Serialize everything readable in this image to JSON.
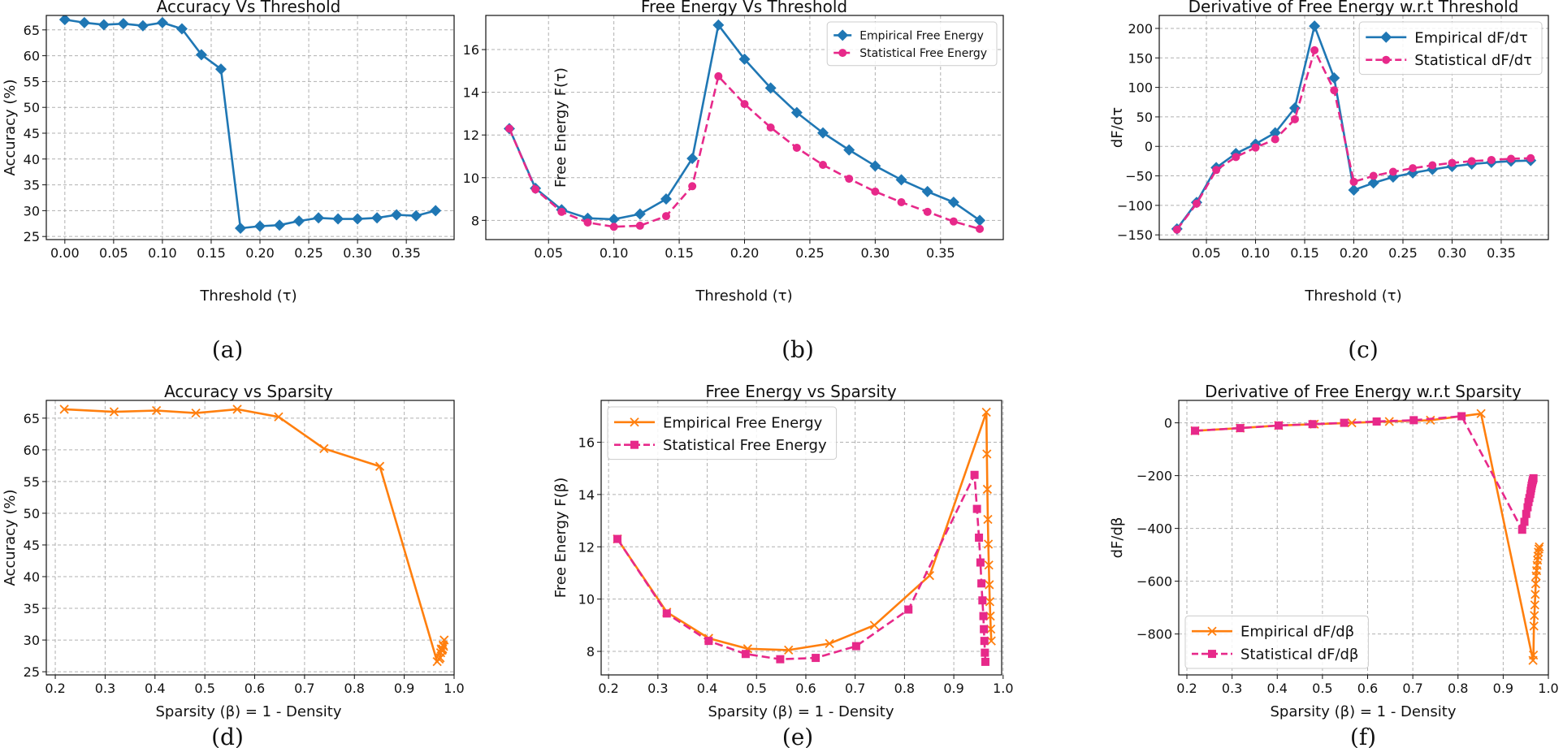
{
  "figure": {
    "captions": [
      "(a)",
      "(b)",
      "(c)",
      "(d)",
      "(e)",
      "(f)"
    ]
  },
  "colors": {
    "blue": "#1f77b4",
    "magenta": "#e7298a",
    "orange": "#ff7f0e"
  },
  "chart_data": [
    {
      "type": "line",
      "title": "Accuracy Vs Threshold",
      "xlabel": "Threshold (τ)",
      "ylabel": "Accuracy (%)",
      "xlim": [
        -0.019,
        0.399
      ],
      "ylim": [
        24.4,
        67.8
      ],
      "xticks": [
        0.0,
        0.05,
        0.1,
        0.15,
        0.2,
        0.25,
        0.3,
        0.35
      ],
      "xtick_labels": [
        "0.00",
        "0.05",
        "0.10",
        "0.15",
        "0.20",
        "0.25",
        "0.30",
        "0.35"
      ],
      "yticks": [
        25,
        30,
        35,
        40,
        45,
        50,
        55,
        60,
        65
      ],
      "ytick_labels": [
        "25",
        "30",
        "35",
        "40",
        "45",
        "50",
        "55",
        "60",
        "65"
      ],
      "grid": true,
      "legend": null,
      "series": [
        {
          "name": "Accuracy",
          "color": "#1f77b4",
          "marker": "diamond",
          "dash": "solid",
          "x": [
            0.0,
            0.02,
            0.04,
            0.06,
            0.08,
            0.1,
            0.12,
            0.14,
            0.16,
            0.18,
            0.2,
            0.22,
            0.24,
            0.26,
            0.28,
            0.3,
            0.32,
            0.34,
            0.36,
            0.38
          ],
          "y": [
            67.0,
            66.4,
            66.0,
            66.2,
            65.8,
            66.4,
            65.2,
            60.2,
            57.4,
            26.6,
            27.0,
            27.2,
            28.0,
            28.6,
            28.4,
            28.4,
            28.6,
            29.2,
            29.0,
            30.0
          ]
        }
      ]
    },
    {
      "type": "line",
      "title": "Free Energy Vs Threshold",
      "xlabel": "Threshold (τ)",
      "ylabel": "Free Energy F(τ)",
      "xlim": [
        0.002,
        0.398
      ],
      "ylim": [
        7.1,
        17.6
      ],
      "xticks": [
        0.05,
        0.1,
        0.15,
        0.2,
        0.25,
        0.3,
        0.35
      ],
      "xtick_labels": [
        "0.05",
        "0.10",
        "0.15",
        "0.20",
        "0.25",
        "0.30",
        "0.35"
      ],
      "yticks": [
        8,
        10,
        12,
        14,
        16
      ],
      "ytick_labels": [
        "8",
        "10",
        "12",
        "14",
        "16"
      ],
      "grid": true,
      "legend": "top-right",
      "legend_font": 14,
      "series": [
        {
          "name": "Empirical Free Energy",
          "color": "#1f77b4",
          "marker": "diamond",
          "dash": "solid",
          "x": [
            0.02,
            0.04,
            0.06,
            0.08,
            0.1,
            0.12,
            0.14,
            0.16,
            0.18,
            0.2,
            0.22,
            0.24,
            0.26,
            0.28,
            0.3,
            0.32,
            0.34,
            0.36,
            0.38
          ],
          "y": [
            12.3,
            9.5,
            8.5,
            8.1,
            8.05,
            8.3,
            9.0,
            10.9,
            17.15,
            15.55,
            14.2,
            13.05,
            12.1,
            11.3,
            10.55,
            9.9,
            9.35,
            8.85,
            8.0
          ]
        },
        {
          "name": "Statistical Free Energy",
          "color": "#e7298a",
          "marker": "circle",
          "dash": "dashed",
          "x": [
            0.02,
            0.04,
            0.06,
            0.08,
            0.1,
            0.12,
            0.14,
            0.16,
            0.18,
            0.2,
            0.22,
            0.24,
            0.26,
            0.28,
            0.3,
            0.32,
            0.34,
            0.36,
            0.38
          ],
          "y": [
            12.3,
            9.45,
            8.4,
            7.9,
            7.7,
            7.75,
            8.2,
            9.6,
            14.75,
            13.45,
            12.35,
            11.4,
            10.6,
            9.95,
            9.35,
            8.85,
            8.4,
            7.95,
            7.6
          ]
        }
      ]
    },
    {
      "type": "line",
      "title": "Derivative of Free Energy w.r.t Threshold",
      "xlabel": "Threshold (τ)",
      "ylabel": "dF/dτ",
      "xlim": [
        0.002,
        0.398
      ],
      "ylim": [
        -158,
        222
      ],
      "xticks": [
        0.05,
        0.1,
        0.15,
        0.2,
        0.25,
        0.3,
        0.35
      ],
      "xtick_labels": [
        "0.05",
        "0.10",
        "0.15",
        "0.20",
        "0.25",
        "0.30",
        "0.35"
      ],
      "yticks": [
        -150,
        -100,
        -50,
        0,
        50,
        100,
        150,
        200
      ],
      "ytick_labels": [
        "−150",
        "−100",
        "−50",
        "0",
        "50",
        "100",
        "150",
        "200"
      ],
      "grid": true,
      "legend": "top-right",
      "legend_font": 18,
      "series": [
        {
          "name": "Empirical dF/dτ",
          "color": "#1f77b4",
          "marker": "diamond",
          "dash": "solid",
          "x": [
            0.02,
            0.04,
            0.06,
            0.08,
            0.1,
            0.12,
            0.14,
            0.16,
            0.18,
            0.2,
            0.22,
            0.24,
            0.26,
            0.28,
            0.3,
            0.32,
            0.34,
            0.36,
            0.38
          ],
          "y": [
            -140,
            -95,
            -36,
            -12,
            4,
            23,
            65,
            204,
            116,
            -74,
            -62,
            -52,
            -45,
            -39,
            -34,
            -30,
            -27,
            -25,
            -24
          ]
        },
        {
          "name": "Statistical dF/dτ",
          "color": "#e7298a",
          "marker": "circle",
          "dash": "dashed",
          "x": [
            0.02,
            0.04,
            0.06,
            0.08,
            0.1,
            0.12,
            0.14,
            0.16,
            0.18,
            0.2,
            0.22,
            0.24,
            0.26,
            0.28,
            0.3,
            0.32,
            0.34,
            0.36,
            0.38
          ],
          "y": [
            -141,
            -97,
            -40,
            -18,
            -2,
            12,
            46,
            163,
            95,
            -60,
            -50,
            -43,
            -37,
            -32,
            -28,
            -25,
            -23,
            -21,
            -20
          ]
        }
      ]
    },
    {
      "type": "line",
      "title": "Accuracy vs Sparsity",
      "xlabel": "Sparsity (β) = 1 - Density",
      "ylabel": "Accuracy (%)",
      "xlim": [
        0.182,
        1.0
      ],
      "ylim": [
        24.5,
        67.8
      ],
      "xticks": [
        0.2,
        0.3,
        0.4,
        0.5,
        0.6,
        0.7,
        0.8,
        0.9,
        1.0
      ],
      "xtick_labels": [
        "0.2",
        "0.3",
        "0.4",
        "0.5",
        "0.6",
        "0.7",
        "0.8",
        "0.9",
        "1.0"
      ],
      "yticks": [
        25,
        30,
        35,
        40,
        45,
        50,
        55,
        60,
        65
      ],
      "ytick_labels": [
        "25",
        "30",
        "35",
        "40",
        "45",
        "50",
        "55",
        "60",
        "65"
      ],
      "grid": true,
      "legend": null,
      "series": [
        {
          "name": "Accuracy",
          "color": "#ff7f0e",
          "marker": "x",
          "dash": "solid",
          "x": [
            0.218,
            0.318,
            0.403,
            0.482,
            0.565,
            0.648,
            0.739,
            0.851,
            0.966,
            0.97,
            0.972,
            0.973,
            0.974,
            0.975,
            0.976,
            0.977,
            0.978,
            0.979,
            0.98
          ],
          "y": [
            66.4,
            66.0,
            66.2,
            65.8,
            66.4,
            65.2,
            60.2,
            57.4,
            26.6,
            27.0,
            27.2,
            28.0,
            28.6,
            28.4,
            28.4,
            28.6,
            29.2,
            29.0,
            30.0
          ]
        }
      ]
    },
    {
      "type": "line",
      "title": "Free Energy vs Sparsity",
      "xlabel": "Sparsity (β) = 1 - Density",
      "ylabel": "Free Energy F(β)",
      "xlim": [
        0.185,
        0.997
      ],
      "ylim": [
        7.1,
        17.6
      ],
      "xticks": [
        0.2,
        0.3,
        0.4,
        0.5,
        0.6,
        0.7,
        0.8,
        0.9,
        1.0
      ],
      "xtick_labels": [
        "0.2",
        "0.3",
        "0.4",
        "0.5",
        "0.6",
        "0.7",
        "0.8",
        "0.9",
        "1.0"
      ],
      "yticks": [
        8,
        10,
        12,
        14,
        16
      ],
      "ytick_labels": [
        "8",
        "10",
        "12",
        "14",
        "16"
      ],
      "grid": true,
      "legend": "top-left",
      "legend_font": 18,
      "series": [
        {
          "name": "Empirical Free Energy",
          "color": "#ff7f0e",
          "marker": "x",
          "dash": "solid",
          "x": [
            0.218,
            0.318,
            0.403,
            0.482,
            0.565,
            0.648,
            0.739,
            0.851,
            0.966,
            0.967,
            0.968,
            0.969,
            0.97,
            0.971,
            0.972,
            0.973,
            0.974,
            0.975,
            0.976
          ],
          "y": [
            12.3,
            9.5,
            8.5,
            8.1,
            8.05,
            8.3,
            9.0,
            10.9,
            17.15,
            15.55,
            14.2,
            13.05,
            12.1,
            11.3,
            10.55,
            9.9,
            9.35,
            8.85,
            8.4
          ]
        },
        {
          "name": "Statistical Free Energy",
          "color": "#e7298a",
          "marker": "square",
          "dash": "dashed",
          "x": [
            0.218,
            0.318,
            0.403,
            0.478,
            0.548,
            0.62,
            0.702,
            0.808,
            0.942,
            0.947,
            0.951,
            0.954,
            0.956,
            0.958,
            0.96,
            0.961,
            0.962,
            0.963,
            0.964
          ],
          "y": [
            12.3,
            9.45,
            8.4,
            7.9,
            7.7,
            7.75,
            8.2,
            9.6,
            14.75,
            13.45,
            12.35,
            11.4,
            10.6,
            9.95,
            9.35,
            8.85,
            8.4,
            7.95,
            7.6
          ]
        }
      ]
    },
    {
      "type": "line",
      "title": "Derivative of Free Energy w.r.t Sparsity",
      "xlabel": "Sparsity (β) = 1 - Density",
      "ylabel": "dF/dβ",
      "xlim": [
        0.182,
        1.0
      ],
      "ylim": [
        -955,
        85
      ],
      "xticks": [
        0.2,
        0.3,
        0.4,
        0.5,
        0.6,
        0.7,
        0.8,
        0.9,
        1.0
      ],
      "xtick_labels": [
        "0.2",
        "0.3",
        "0.4",
        "0.5",
        "0.6",
        "0.7",
        "0.8",
        "0.9",
        "1.0"
      ],
      "yticks": [
        -800,
        -600,
        -400,
        -200,
        0
      ],
      "ytick_labels": [
        "−800",
        "−600",
        "−400",
        "−200",
        "0"
      ],
      "grid": true,
      "legend": "bottom-left",
      "legend_font": 18,
      "series": [
        {
          "name": "Empirical dF/dβ",
          "color": "#ff7f0e",
          "marker": "x",
          "dash": "solid",
          "x": [
            0.218,
            0.318,
            0.403,
            0.482,
            0.565,
            0.648,
            0.739,
            0.851,
            0.966,
            0.967,
            0.968,
            0.969,
            0.97,
            0.971,
            0.972,
            0.973,
            0.974,
            0.975,
            0.976,
            0.977,
            0.978,
            0.979,
            0.98
          ],
          "y": [
            -30,
            -20,
            -10,
            -5,
            0,
            5,
            10,
            35,
            -900,
            -880,
            -770,
            -730,
            -690,
            -650,
            -610,
            -580,
            -560,
            -540,
            -520,
            -505,
            -490,
            -478,
            -470
          ]
        },
        {
          "name": "Statistical dF/dβ",
          "color": "#e7298a",
          "marker": "square",
          "dash": "dashed",
          "x": [
            0.218,
            0.318,
            0.403,
            0.478,
            0.548,
            0.62,
            0.702,
            0.808,
            0.942,
            0.947,
            0.951,
            0.954,
            0.956,
            0.958,
            0.96,
            0.961,
            0.962,
            0.963,
            0.964,
            0.965,
            0.966,
            0.967
          ],
          "y": [
            -30,
            -20,
            -10,
            -5,
            0,
            5,
            10,
            25,
            -405,
            -375,
            -345,
            -320,
            -300,
            -285,
            -270,
            -258,
            -248,
            -238,
            -230,
            -222,
            -216,
            -210
          ]
        }
      ]
    }
  ]
}
